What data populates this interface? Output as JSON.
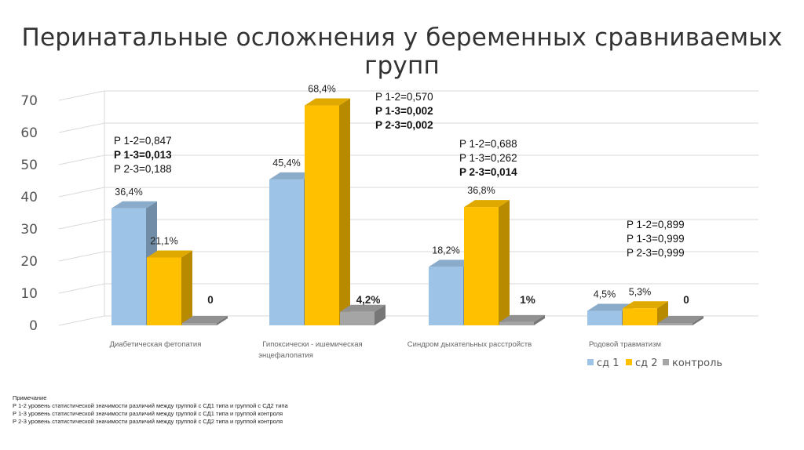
{
  "title": "Перинатальные осложнения у беременных сравниваемых групп",
  "colors": {
    "series1": "#9DC3E6",
    "series2": "#FFC000",
    "series3": "#A5A5A5"
  },
  "chart_data": {
    "type": "bar",
    "ylim": [
      0,
      70
    ],
    "yticks": [
      0,
      10,
      20,
      30,
      40,
      50,
      60,
      70
    ],
    "grid": true,
    "legend_position": "bottom-right",
    "categories": [
      "Диабетическая фетопатия",
      "Гипоксически - ишемическая энцефалопатия",
      "Синдром дыхательных расстройств",
      "Родовой травматизм"
    ],
    "category_lines": [
      [
        "Диабетическая фетопатия"
      ],
      [
        "Гипоксически - ишемическая",
        "энцефалопатия"
      ],
      [
        "Синдром дыхательных расстройств"
      ],
      [
        "Родовой травматизм"
      ]
    ],
    "series": [
      {
        "name": "сд 1",
        "values": [
          36.4,
          45.4,
          18.2,
          4.5
        ],
        "labels": [
          "36,4%",
          "45,4%",
          "18,2%",
          "4,5%"
        ]
      },
      {
        "name": "сд 2",
        "values": [
          21.1,
          68.4,
          36.8,
          5.3
        ],
        "labels": [
          "21,1%",
          "68,4%",
          "36,8%",
          "5,3%"
        ]
      },
      {
        "name": "контроль",
        "values": [
          0,
          4.2,
          1,
          0
        ],
        "labels": [
          "0",
          "4,2%",
          "1%",
          "0"
        ]
      }
    ],
    "annotations": [
      [
        "P 1-2=0,847",
        "P 1-3=0,013",
        "P 2-3=0,188"
      ],
      [
        "P 1-2=0,570",
        "P 1-3=0,002",
        "P 2-3=0,002"
      ],
      [
        "P 1-2=0,688",
        "P 1-3=0,262",
        "P 2-3=0,014"
      ],
      [
        "P 1-2=0,899",
        "P 1-3=0,999",
        "P 2-3=0,999"
      ]
    ],
    "annotation_bold": [
      [
        false,
        true,
        false
      ],
      [
        false,
        true,
        true
      ],
      [
        false,
        false,
        true
      ],
      [
        false,
        false,
        false
      ]
    ]
  },
  "notes": {
    "heading": "Примечание",
    "lines": [
      "Р 1-2 уровень статистической значимости различий между группой с СД1 типа и группой с СД2 типа",
      "Р 1-3 уровень статистической значимости различий между группой с СД1 типа и группой контроля",
      "Р 2-3 уровень статистической значимости различий между группой с СД2 типа и группой контроля"
    ]
  }
}
